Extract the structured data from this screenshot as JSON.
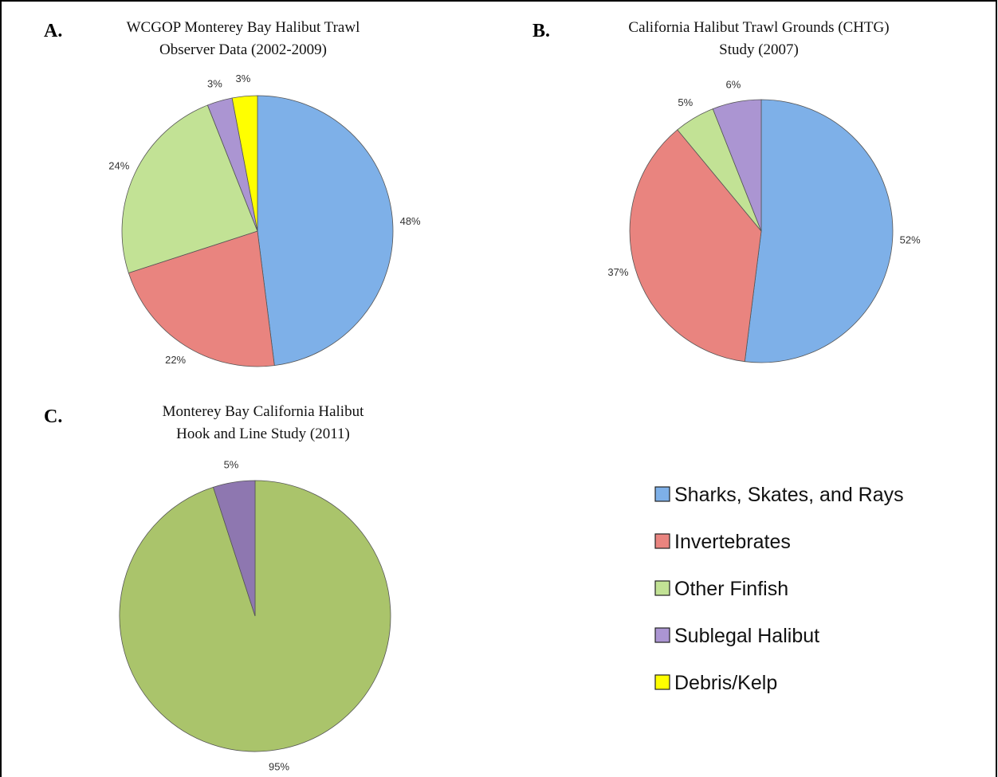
{
  "chart_data": [
    {
      "type": "pie",
      "panel": "A.",
      "title": [
        "WCGOP Monterey Bay Halibut Trawl",
        "Observer Data (2002-2009)"
      ],
      "categories": [
        "Sharks, Skates, and Rays",
        "Invertebrates",
        "Other Finfish",
        "Sublegal Halibut",
        "Debris/Kelp"
      ],
      "values": [
        48,
        22,
        24,
        3,
        3
      ],
      "value_labels": [
        "48%",
        "22%",
        "24%",
        "3%",
        "3%"
      ],
      "colors": [
        "#7eb0e8",
        "#e9847f",
        "#c2e295",
        "#ab95d2",
        "#ffff00"
      ],
      "legend": true
    },
    {
      "type": "pie",
      "panel": "B.",
      "title": [
        "California Halibut Trawl Grounds (CHTG)",
        "Study (2007)"
      ],
      "categories": [
        "Sharks, Skates, and Rays",
        "Invertebrates",
        "Other Finfish",
        "Sublegal Halibut"
      ],
      "values": [
        52,
        37,
        5,
        6
      ],
      "value_labels": [
        "52%",
        "37%",
        "5%",
        "6%"
      ],
      "colors": [
        "#7eb0e8",
        "#e9847f",
        "#c2e295",
        "#ab95d2"
      ]
    },
    {
      "type": "pie",
      "panel": "C.",
      "title": [
        "Monterey Bay California Halibut",
        "Hook and Line Study (2011)"
      ],
      "categories": [
        "Other Finfish",
        "Sublegal Halibut"
      ],
      "values": [
        95,
        5
      ],
      "value_labels": [
        "95%",
        "5%"
      ],
      "colors": [
        "#aac46b",
        "#8e77b0"
      ]
    }
  ]
}
